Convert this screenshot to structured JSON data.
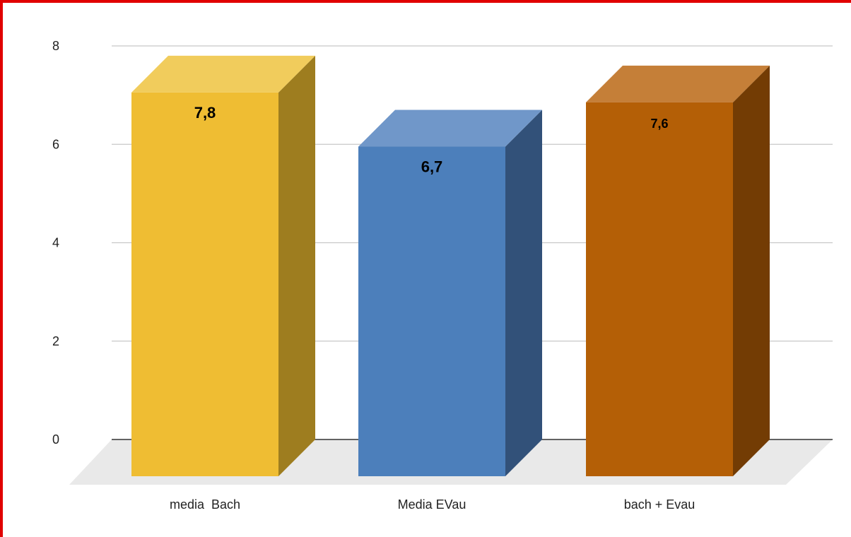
{
  "chart_data": {
    "type": "bar",
    "title": "",
    "xlabel": "",
    "ylabel": "",
    "categories": [
      "media  Bach",
      "Media EVau",
      "bach + Evau"
    ],
    "values": [
      7.8,
      6.7,
      7.6
    ],
    "data_labels": [
      "7,8",
      "6,7",
      "7,6"
    ],
    "y_ticks": [
      "0",
      "2",
      "4",
      "6",
      "8"
    ],
    "ylim": [
      0,
      8
    ],
    "grid": true,
    "legend": "none",
    "style": "3d-bar",
    "colors": {
      "bars": [
        "#efbd33",
        "#4c7fbb",
        "#b45f06"
      ],
      "bar_tops": [
        "#f1cc5c",
        "#7097c9",
        "#c57f38"
      ],
      "bar_sides": [
        "#9e7d1f",
        "#325179",
        "#733c04"
      ],
      "grid": "#c8c8c8",
      "floor": "#e9e9e9",
      "axis": "#333333",
      "frame": "#e10000"
    }
  }
}
